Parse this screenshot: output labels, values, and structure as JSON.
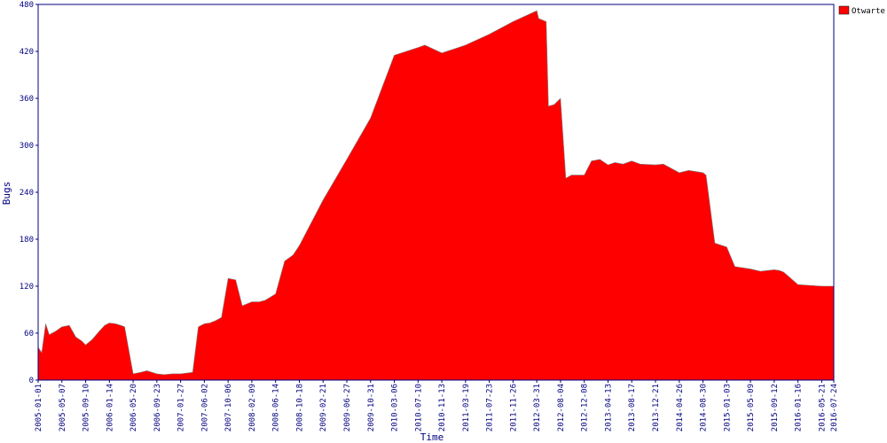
{
  "chart_data": {
    "type": "area",
    "title": "",
    "xlabel": "Time",
    "ylabel": "Bugs",
    "ylim": [
      0,
      480
    ],
    "yticks": [
      0,
      60,
      120,
      180,
      240,
      300,
      360,
      420,
      480
    ],
    "xlim": [
      "2005-01-01",
      "2016-07-24"
    ],
    "grid": false,
    "legend_position": "top-right",
    "xticks": [
      "2005-01-01",
      "2005-05-07",
      "2005-09-10",
      "2006-01-14",
      "2006-05-20",
      "2006-09-23",
      "2007-01-27",
      "2007-06-02",
      "2007-10-06",
      "2008-02-09",
      "2008-06-14",
      "2008-10-18",
      "2009-02-21",
      "2009-06-27",
      "2009-10-31",
      "2010-03-06",
      "2010-07-10",
      "2010-11-13",
      "2011-03-19",
      "2011-07-23",
      "2011-11-26",
      "2012-03-31",
      "2012-08-04",
      "2012-12-08",
      "2013-04-13",
      "2013-08-17",
      "2013-12-21",
      "2014-04-26",
      "2014-08-30",
      "2015-01-03",
      "2015-05-09",
      "2015-09-12",
      "2016-01-16",
      "2016-05-21",
      "2016-07-24"
    ],
    "series": [
      {
        "name": "Otwarte",
        "color": "#ff0000",
        "x": [
          "2005-01-01",
          "2005-01-20",
          "2005-02-10",
          "2005-03-01",
          "2005-04-01",
          "2005-05-07",
          "2005-06-15",
          "2005-07-20",
          "2005-08-20",
          "2005-09-10",
          "2005-10-15",
          "2005-11-20",
          "2005-12-20",
          "2006-01-14",
          "2006-02-15",
          "2006-03-15",
          "2006-04-05",
          "2006-05-20",
          "2006-06-30",
          "2006-08-01",
          "2006-09-23",
          "2006-11-01",
          "2006-12-15",
          "2007-01-27",
          "2007-03-01",
          "2007-04-01",
          "2007-05-01",
          "2007-06-02",
          "2007-07-01",
          "2007-08-01",
          "2007-09-01",
          "2007-10-06",
          "2007-11-15",
          "2007-12-20",
          "2008-02-09",
          "2008-03-20",
          "2008-04-20",
          "2008-06-14",
          "2008-08-01",
          "2008-09-15",
          "2008-10-18",
          "2009-02-21",
          "2009-06-27",
          "2009-10-31",
          "2010-03-06",
          "2010-07-10",
          "2010-08-15",
          "2010-11-13",
          "2011-03-19",
          "2011-07-23",
          "2011-11-26",
          "2012-03-31",
          "2012-04-10",
          "2012-05-01",
          "2012-05-20",
          "2012-06-01",
          "2012-07-01",
          "2012-08-04",
          "2012-09-01",
          "2012-10-01",
          "2012-12-08",
          "2013-01-15",
          "2013-03-01",
          "2013-04-13",
          "2013-05-20",
          "2013-07-01",
          "2013-08-17",
          "2013-10-01",
          "2013-12-21",
          "2014-02-01",
          "2014-04-26",
          "2014-06-15",
          "2014-08-30",
          "2014-09-15",
          "2014-11-01",
          "2015-01-03",
          "2015-02-15",
          "2015-05-09",
          "2015-07-01",
          "2015-09-12",
          "2015-10-10",
          "2015-11-01",
          "2016-01-16",
          "2016-05-21",
          "2016-07-24"
        ],
        "values": [
          42,
          35,
          72,
          58,
          62,
          68,
          70,
          55,
          50,
          45,
          52,
          62,
          70,
          73,
          72,
          70,
          68,
          8,
          10,
          12,
          8,
          7,
          8,
          8,
          9,
          10,
          68,
          72,
          73,
          76,
          80,
          130,
          128,
          95,
          100,
          100,
          102,
          110,
          152,
          160,
          172,
          230,
          282,
          335,
          415,
          425,
          428,
          418,
          428,
          442,
          458,
          472,
          462,
          460,
          458,
          350,
          352,
          360,
          258,
          262,
          262,
          280,
          282,
          275,
          278,
          276,
          280,
          276,
          275,
          276,
          265,
          268,
          265,
          262,
          175,
          170,
          145,
          142,
          139,
          141,
          140,
          138,
          122,
          120,
          120
        ]
      }
    ]
  }
}
